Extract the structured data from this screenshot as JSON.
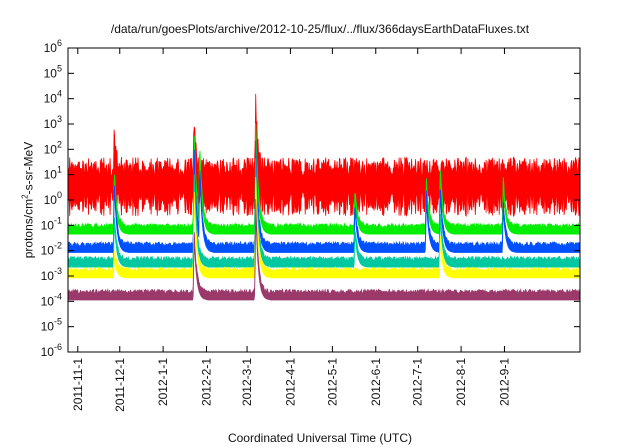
{
  "chart_data": {
    "type": "line",
    "title": "/data/run/goesPlots/archive/2012-10-25/flux/../flux/366daysEarthDataFluxes.txt",
    "xlabel": "Coordinated Universal Time (UTC)",
    "ylabel": {
      "prefix": "protons/cm",
      "sup": "2",
      "suffix": "-s-sr-MeV"
    },
    "y_scale": "log",
    "ylim": [
      1e-06,
      1000000.0
    ],
    "y_ticks": [
      {
        "value": 1e-06,
        "base": "10",
        "exp": "-6"
      },
      {
        "value": 1e-05,
        "base": "10",
        "exp": "-5"
      },
      {
        "value": 0.0001,
        "base": "10",
        "exp": "-4"
      },
      {
        "value": 0.001,
        "base": "10",
        "exp": "-3"
      },
      {
        "value": 0.01,
        "base": "10",
        "exp": "-2"
      },
      {
        "value": 0.1,
        "base": "10",
        "exp": "-1"
      },
      {
        "value": 1,
        "base": "10",
        "exp": "0"
      },
      {
        "value": 10,
        "base": "10",
        "exp": "1"
      },
      {
        "value": 100,
        "base": "10",
        "exp": "2"
      },
      {
        "value": 1000,
        "base": "10",
        "exp": "3"
      },
      {
        "value": 10000,
        "base": "10",
        "exp": "4"
      },
      {
        "value": 100000,
        "base": "10",
        "exp": "5"
      },
      {
        "value": 1000000,
        "base": "10",
        "exp": "6"
      }
    ],
    "xlim": [
      "2011-10-25",
      "2012-10-25"
    ],
    "x_ticks": [
      "2011-11-1",
      "2011-12-1",
      "2012-1-1",
      "2012-2-1",
      "2012-3-1",
      "2012-4-1",
      "2012-5-1",
      "2012-6-1",
      "2012-7-1",
      "2012-8-1",
      "2012-9-1"
    ],
    "grid": false,
    "legend": "none",
    "series": [
      {
        "color": "#ff0000",
        "baseline": 8,
        "events": [
          {
            "date": "2011-11-27",
            "peak": 300
          },
          {
            "date": "2012-1-23",
            "peak": 1000
          },
          {
            "date": "2012-3-7",
            "peak": 30000
          }
        ]
      },
      {
        "color": "#00ee00",
        "baseline": 0.08,
        "events": [
          {
            "date": "2011-11-27",
            "peak": 20
          },
          {
            "date": "2012-1-23",
            "peak": 1000
          },
          {
            "date": "2012-1-27",
            "peak": 300
          },
          {
            "date": "2012-3-7",
            "peak": 3000
          },
          {
            "date": "2012-5-17",
            "peak": 3
          },
          {
            "date": "2012-7-7",
            "peak": 10
          },
          {
            "date": "2012-7-17",
            "peak": 30
          },
          {
            "date": "2012-8-31",
            "peak": 10
          }
        ]
      },
      {
        "color": "#0050ff",
        "baseline": 0.015,
        "events": [
          {
            "date": "2011-11-27",
            "peak": 10
          },
          {
            "date": "2012-1-23",
            "peak": 300
          },
          {
            "date": "2012-1-27",
            "peak": 50
          },
          {
            "date": "2012-3-7",
            "peak": 500
          },
          {
            "date": "2012-5-17",
            "peak": 1
          },
          {
            "date": "2012-7-7",
            "peak": 3
          },
          {
            "date": "2012-7-17",
            "peak": 5
          },
          {
            "date": "2012-8-31",
            "peak": 1
          }
        ]
      },
      {
        "color": "#00c8a0",
        "baseline": 0.004,
        "events": [
          {
            "date": "2011-11-27",
            "peak": 0.3
          },
          {
            "date": "2012-1-23",
            "peak": 30
          },
          {
            "date": "2012-3-7",
            "peak": 100
          },
          {
            "date": "2012-5-17",
            "peak": 0.1
          },
          {
            "date": "2012-7-17",
            "peak": 0.5
          }
        ]
      },
      {
        "color": "#ffff00",
        "baseline": 0.0015,
        "events": [
          {
            "date": "2011-11-27",
            "peak": 0.01
          },
          {
            "date": "2012-1-23",
            "peak": 5
          },
          {
            "date": "2012-3-7",
            "peak": 20
          },
          {
            "date": "2012-7-17",
            "peak": 0.05
          }
        ]
      },
      {
        "color": "#9b3a6a",
        "baseline": 0.0002,
        "events": [
          {
            "date": "2012-1-23",
            "peak": 0.1
          },
          {
            "date": "2012-3-7",
            "peak": 2
          }
        ]
      }
    ]
  }
}
